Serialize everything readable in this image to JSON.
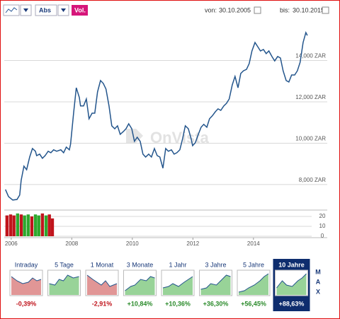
{
  "toolbar": {
    "scale": "Abs",
    "volume": "Vol.",
    "from_label": "von:",
    "from_date": "30.10.2005",
    "to_label": "bis:",
    "to_date": "30.10.2015"
  },
  "watermark": "OnVista",
  "chart_data": [
    {
      "type": "line",
      "color": "#23558c",
      "grid": true,
      "xlim": [
        2005.77,
        2016.39
      ],
      "ylim": [
        6800,
        16240
      ],
      "xticks": [
        2006,
        2008,
        2010,
        2012,
        2014
      ],
      "yticks": [
        {
          "value": 8000,
          "label": "8,000 ZAR"
        },
        {
          "value": 10000,
          "label": "10,000 ZAR"
        },
        {
          "value": 12000,
          "label": "12,000 ZAR"
        },
        {
          "value": 14000,
          "label": "14,000 ZAR"
        }
      ],
      "x": [
        2005.81,
        2005.91,
        2006.05,
        2006.19,
        2006.28,
        2006.33,
        2006.42,
        2006.51,
        2006.61,
        2006.7,
        2006.8,
        2006.84,
        2006.94,
        2007.03,
        2007.12,
        2007.22,
        2007.31,
        2007.4,
        2007.5,
        2007.64,
        2007.73,
        2007.82,
        2007.92,
        2007.96,
        2008.06,
        2008.15,
        2008.25,
        2008.29,
        2008.39,
        2008.48,
        2008.57,
        2008.67,
        2008.76,
        2008.85,
        2008.95,
        2009.04,
        2009.13,
        2009.23,
        2009.32,
        2009.42,
        2009.51,
        2009.6,
        2009.7,
        2009.79,
        2009.88,
        2009.98,
        2010.07,
        2010.16,
        2010.26,
        2010.35,
        2010.44,
        2010.54,
        2010.63,
        2010.73,
        2010.82,
        2010.91,
        2011.01,
        2011.1,
        2011.19,
        2011.29,
        2011.38,
        2011.47,
        2011.57,
        2011.66,
        2011.75,
        2011.85,
        2011.94,
        2011.99,
        2012.08,
        2012.18,
        2012.27,
        2012.36,
        2012.46,
        2012.55,
        2012.64,
        2012.74,
        2012.83,
        2012.92,
        2013.02,
        2013.11,
        2013.2,
        2013.3,
        2013.39,
        2013.49,
        2013.58,
        2013.67,
        2013.77,
        2013.86,
        2013.95,
        2014.05,
        2014.14,
        2014.23,
        2014.33,
        2014.42,
        2014.51,
        2014.61,
        2014.7,
        2014.8,
        2014.89,
        2014.98,
        2015.08,
        2015.17,
        2015.26,
        2015.36,
        2015.45,
        2015.54,
        2015.64,
        2015.73,
        2015.78
      ],
      "values": [
        7760,
        7420,
        7250,
        7280,
        7490,
        8210,
        8890,
        8720,
        9330,
        9740,
        9610,
        9400,
        9470,
        9270,
        9400,
        9610,
        9540,
        9680,
        9610,
        9680,
        9540,
        9810,
        9680,
        9950,
        11450,
        12680,
        12210,
        11800,
        11800,
        12140,
        11180,
        11450,
        11450,
        12480,
        13030,
        12890,
        12620,
        11800,
        10840,
        10700,
        10840,
        10430,
        10560,
        10700,
        10940,
        10700,
        10090,
        10290,
        10090,
        9470,
        9330,
        9470,
        9330,
        9740,
        9400,
        9330,
        8790,
        9740,
        9610,
        9680,
        9470,
        9540,
        9680,
        10220,
        10840,
        10700,
        10220,
        9880,
        10020,
        10430,
        10770,
        10910,
        10770,
        11180,
        11320,
        11520,
        11660,
        11590,
        11800,
        11930,
        12140,
        12820,
        13230,
        12680,
        13370,
        13500,
        13570,
        13850,
        14460,
        14870,
        14670,
        14460,
        14530,
        14330,
        14460,
        14190,
        13980,
        14190,
        14120,
        13500,
        13030,
        12960,
        13300,
        13300,
        13500,
        13910,
        14870,
        15350,
        15210
      ]
    },
    {
      "type": "bar",
      "xlim": [
        2005.77,
        2016.39
      ],
      "ylim": [
        0,
        25.7
      ],
      "yticks": [
        0,
        10,
        20
      ],
      "x": [
        2005.86,
        2005.98,
        2006.09,
        2006.21,
        2006.33,
        2006.44,
        2006.56,
        2006.68,
        2006.8,
        2006.91,
        2007.03,
        2007.15,
        2007.26,
        2007.36
      ],
      "values": [
        21,
        22,
        21,
        23,
        22,
        21,
        22,
        20,
        22,
        21,
        23,
        21,
        22,
        18
      ],
      "colors": [
        "#c0141c",
        "#c0141c",
        "#c0141c",
        "#2ea82e",
        "#c0141c",
        "#2ea82e",
        "#2ea82e",
        "#c0141c",
        "#2ea82e",
        "#2ea82e",
        "#c0141c",
        "#2ea82e",
        "#c0141c",
        "#c0141c"
      ]
    }
  ],
  "tabs": [
    {
      "label": "Intraday",
      "change": "-0,39%"
    },
    {
      "label": "5 Tage"
    },
    {
      "label": "1 Monat",
      "change": "-2,91%"
    },
    {
      "label": "3 Monate",
      "change": "+10,84%"
    },
    {
      "label": "1 Jahr",
      "change": "+10,36%"
    },
    {
      "label": "3 Jahre",
      "change": "+36,30%"
    },
    {
      "label": "5 Jahre",
      "change": "+56,45%"
    },
    {
      "label": "10 Jahre",
      "change": "+88,63%"
    }
  ],
  "max_letters": [
    "M",
    "A",
    "X"
  ]
}
